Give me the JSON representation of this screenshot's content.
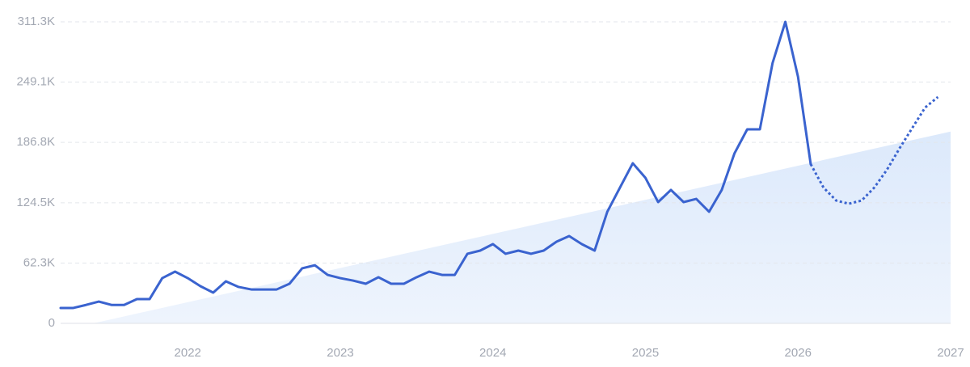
{
  "chart_data": {
    "type": "line",
    "xlim": [
      2021.167,
      2027
    ],
    "xticks": [
      2022,
      2023,
      2024,
      2025,
      2026,
      2027
    ],
    "ylim": [
      0,
      311300
    ],
    "yticks": [
      0,
      {
        "value": 62300,
        "label": "62.3K"
      },
      {
        "value": 124500,
        "label": "124.5K"
      },
      {
        "value": 186800,
        "label": "186.8K"
      },
      {
        "value": 249100,
        "label": "249.1K"
      },
      {
        "value": 311300,
        "label": "311.3K"
      }
    ],
    "grid": true,
    "trend": {
      "color": "#dce9fb",
      "x": [
        2021.38,
        2027
      ],
      "values": [
        0,
        198000
      ]
    },
    "series": [
      {
        "color": "#3a63cf",
        "style": "solid",
        "x": [
          2021.167,
          2021.25,
          2021.333,
          2021.417,
          2021.5,
          2021.583,
          2021.667,
          2021.75,
          2021.833,
          2021.917,
          2022,
          2022.083,
          2022.167,
          2022.25,
          2022.333,
          2022.417,
          2022.5,
          2022.583,
          2022.667,
          2022.75,
          2022.833,
          2022.917,
          2023,
          2023.083,
          2023.167,
          2023.25,
          2023.333,
          2023.417,
          2023.5,
          2023.583,
          2023.667,
          2023.75,
          2023.833,
          2023.917,
          2024,
          2024.083,
          2024.167,
          2024.25,
          2024.333,
          2024.417,
          2024.5,
          2024.583,
          2024.667,
          2024.75,
          2024.833,
          2024.917,
          2025,
          2025.083,
          2025.167,
          2025.25,
          2025.333,
          2025.417,
          2025.5,
          2025.583,
          2025.667,
          2025.75,
          2025.833,
          2025.917,
          2026,
          2026.083
        ],
        "values": [
          15900,
          15900,
          19000,
          22500,
          19000,
          19000,
          25000,
          25000,
          46700,
          53400,
          46700,
          38400,
          31700,
          43400,
          37600,
          35000,
          35000,
          35000,
          40900,
          56800,
          60000,
          50000,
          46700,
          44200,
          40900,
          47600,
          40900,
          40900,
          47600,
          53400,
          50000,
          50000,
          71800,
          75100,
          81800,
          71800,
          75100,
          71800,
          75100,
          84300,
          90100,
          81800,
          75100,
          115200,
          140200,
          165300,
          150200,
          125200,
          137700,
          125200,
          128500,
          115200,
          137700,
          175300,
          200300,
          200300,
          268700,
          311300,
          254500,
          164400
        ]
      },
      {
        "color": "#3a63cf",
        "style": "dotted",
        "x": [
          2026.083,
          2026.167,
          2026.25,
          2026.333,
          2026.417,
          2026.5,
          2026.583,
          2026.667,
          2026.75,
          2026.833,
          2026.917
        ],
        "values": [
          164400,
          140200,
          126800,
          123500,
          126800,
          140200,
          158600,
          181100,
          202000,
          222800,
          233700
        ]
      }
    ]
  }
}
